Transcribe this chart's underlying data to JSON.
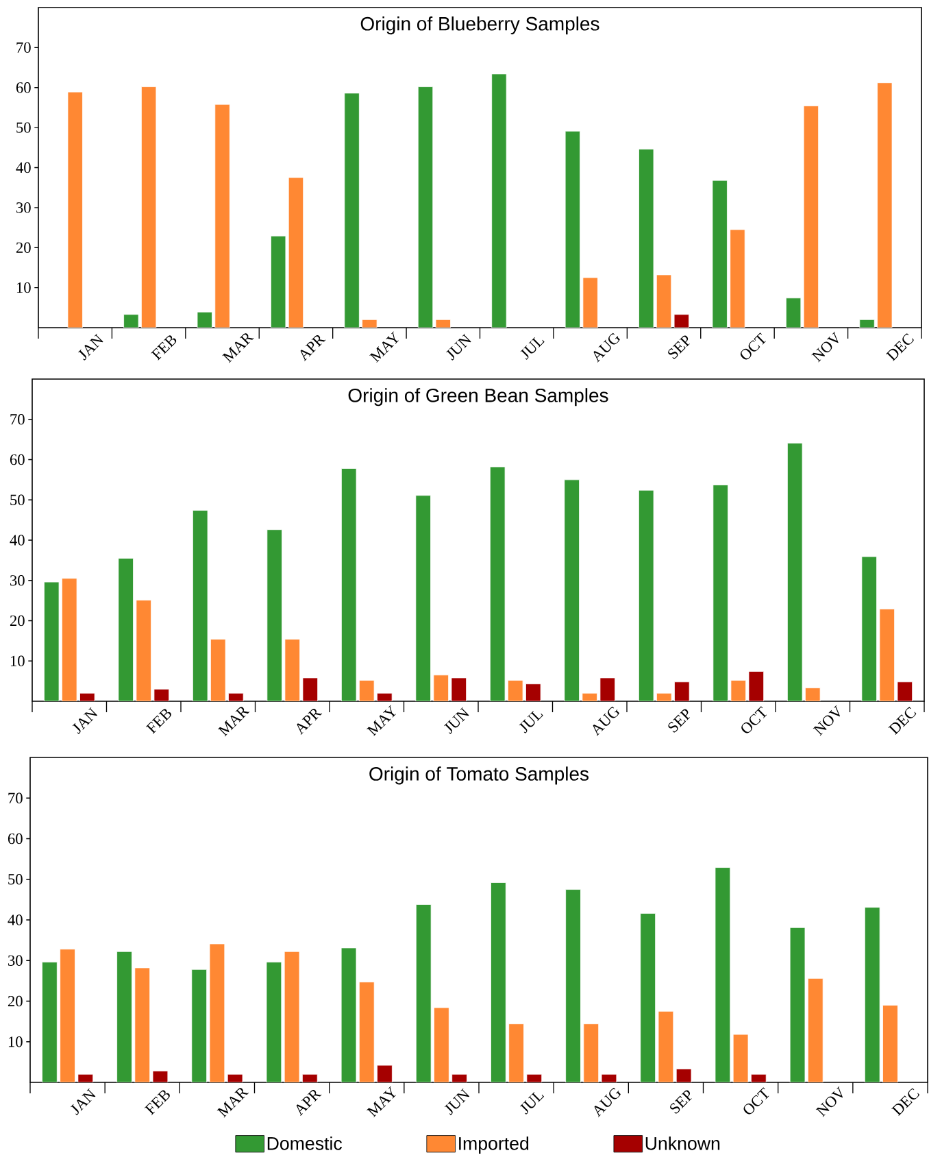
{
  "chart_data": [
    {
      "type": "bar",
      "title": "Origin of Blueberry Samples",
      "categories": [
        "JAN",
        "FEB",
        "MAR",
        "APR",
        "MAY",
        "JUN",
        "JUL",
        "AUG",
        "SEP",
        "OCT",
        "NOV",
        "DEC"
      ],
      "ylim": [
        0,
        80
      ],
      "yticks": [
        10,
        20,
        30,
        40,
        50,
        60,
        70
      ],
      "series": [
        {
          "color": "#339933",
          "values": [
            null,
            3.3,
            3.9,
            22.9,
            58.6,
            60.2,
            63.4,
            49.1,
            44.6,
            36.8,
            7.4,
            2.0
          ]
        },
        {
          "color": "#ff8833",
          "values": [
            58.9,
            60.2,
            55.8,
            37.5,
            2.0,
            2.0,
            null,
            12.5,
            13.2,
            24.5,
            55.4,
            61.2
          ]
        },
        {
          "color": "#a50000",
          "values": [
            null,
            null,
            null,
            null,
            null,
            null,
            null,
            null,
            3.3,
            null,
            null,
            null
          ]
        }
      ]
    },
    {
      "type": "bar",
      "title": "Origin of Green Bean Samples",
      "categories": [
        "JAN",
        "FEB",
        "MAR",
        "APR",
        "MAY",
        "JUN",
        "JUL",
        "AUG",
        "SEP",
        "OCT",
        "NOV",
        "DEC"
      ],
      "ylim": [
        0,
        80
      ],
      "yticks": [
        10,
        20,
        30,
        40,
        50,
        60,
        70
      ],
      "series": [
        {
          "color": "#339933",
          "values": [
            29.6,
            35.5,
            47.4,
            42.6,
            57.8,
            51.1,
            58.2,
            55.0,
            52.4,
            53.7,
            64.1,
            35.9
          ]
        },
        {
          "color": "#ff8833",
          "values": [
            30.5,
            25.1,
            15.4,
            15.4,
            5.2,
            6.5,
            5.2,
            2.0,
            2.0,
            5.2,
            3.3,
            22.9
          ]
        },
        {
          "color": "#a50000",
          "values": [
            2.0,
            3.0,
            2.0,
            5.8,
            2.0,
            5.8,
            4.3,
            5.8,
            4.8,
            7.4,
            null,
            4.8
          ]
        }
      ]
    },
    {
      "type": "bar",
      "title": "Origin of Tomato Samples",
      "categories": [
        "JAN",
        "FEB",
        "MAR",
        "APR",
        "MAY",
        "JUN",
        "JUL",
        "AUG",
        "SEP",
        "OCT",
        "NOV",
        "DEC"
      ],
      "ylim": [
        0,
        80
      ],
      "yticks": [
        10,
        20,
        30,
        40,
        50,
        60,
        70
      ],
      "legend": "bottom",
      "series": [
        {
          "name": "Domestic",
          "color": "#339933",
          "values": [
            29.6,
            32.2,
            27.8,
            29.6,
            33.1,
            43.8,
            49.2,
            47.5,
            41.6,
            52.9,
            38.1,
            43.1
          ]
        },
        {
          "name": "Imported",
          "color": "#ff8833",
          "values": [
            32.8,
            28.2,
            34.1,
            32.2,
            24.7,
            18.4,
            14.4,
            14.4,
            17.5,
            11.8,
            25.6,
            19.0
          ]
        },
        {
          "name": "Unknown",
          "color": "#a50000",
          "values": [
            2.0,
            2.8,
            2.0,
            2.0,
            4.2,
            2.0,
            2.0,
            2.0,
            3.3,
            2.0,
            null,
            null
          ]
        }
      ]
    }
  ]
}
